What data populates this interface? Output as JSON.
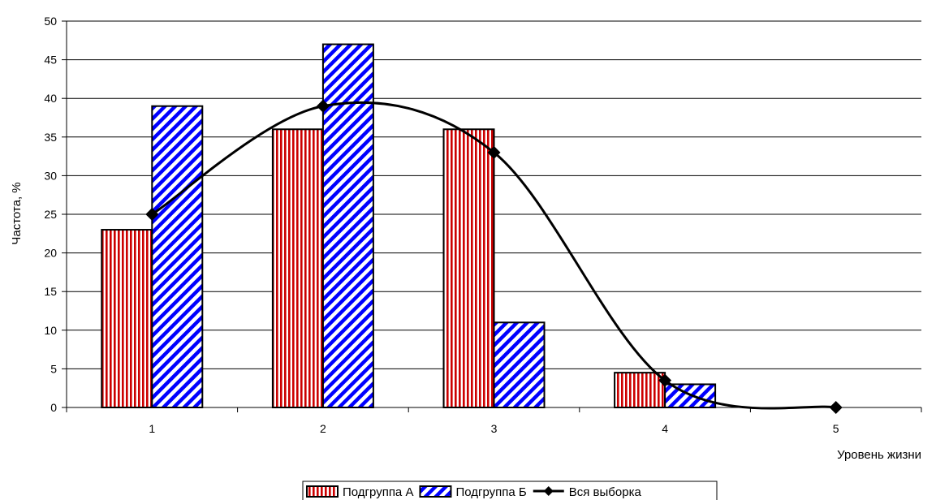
{
  "chart_data": {
    "type": "bar",
    "categories": [
      "1",
      "2",
      "3",
      "4",
      "5"
    ],
    "series": [
      {
        "name": "Подгруппа А",
        "kind": "bar",
        "pattern": "vertical-stripes",
        "color": "#cc0000",
        "values": [
          23,
          36,
          36,
          4.5,
          0
        ]
      },
      {
        "name": "Подгруппа Б",
        "kind": "bar",
        "pattern": "diagonal-stripes",
        "color": "#0000ff",
        "values": [
          39,
          47,
          11,
          3,
          0
        ]
      },
      {
        "name": "Вся выборка",
        "kind": "line",
        "marker": "diamond",
        "smooth": true,
        "color": "#000000",
        "values": [
          25,
          39,
          33,
          3.5,
          0
        ]
      }
    ],
    "xlabel": "Уровень жизни",
    "ylabel": "Частота, %",
    "ylim": [
      0,
      50
    ],
    "yticks": [
      0,
      5,
      10,
      15,
      20,
      25,
      30,
      35,
      40,
      45,
      50
    ],
    "grid": true,
    "legend_position": "bottom"
  }
}
